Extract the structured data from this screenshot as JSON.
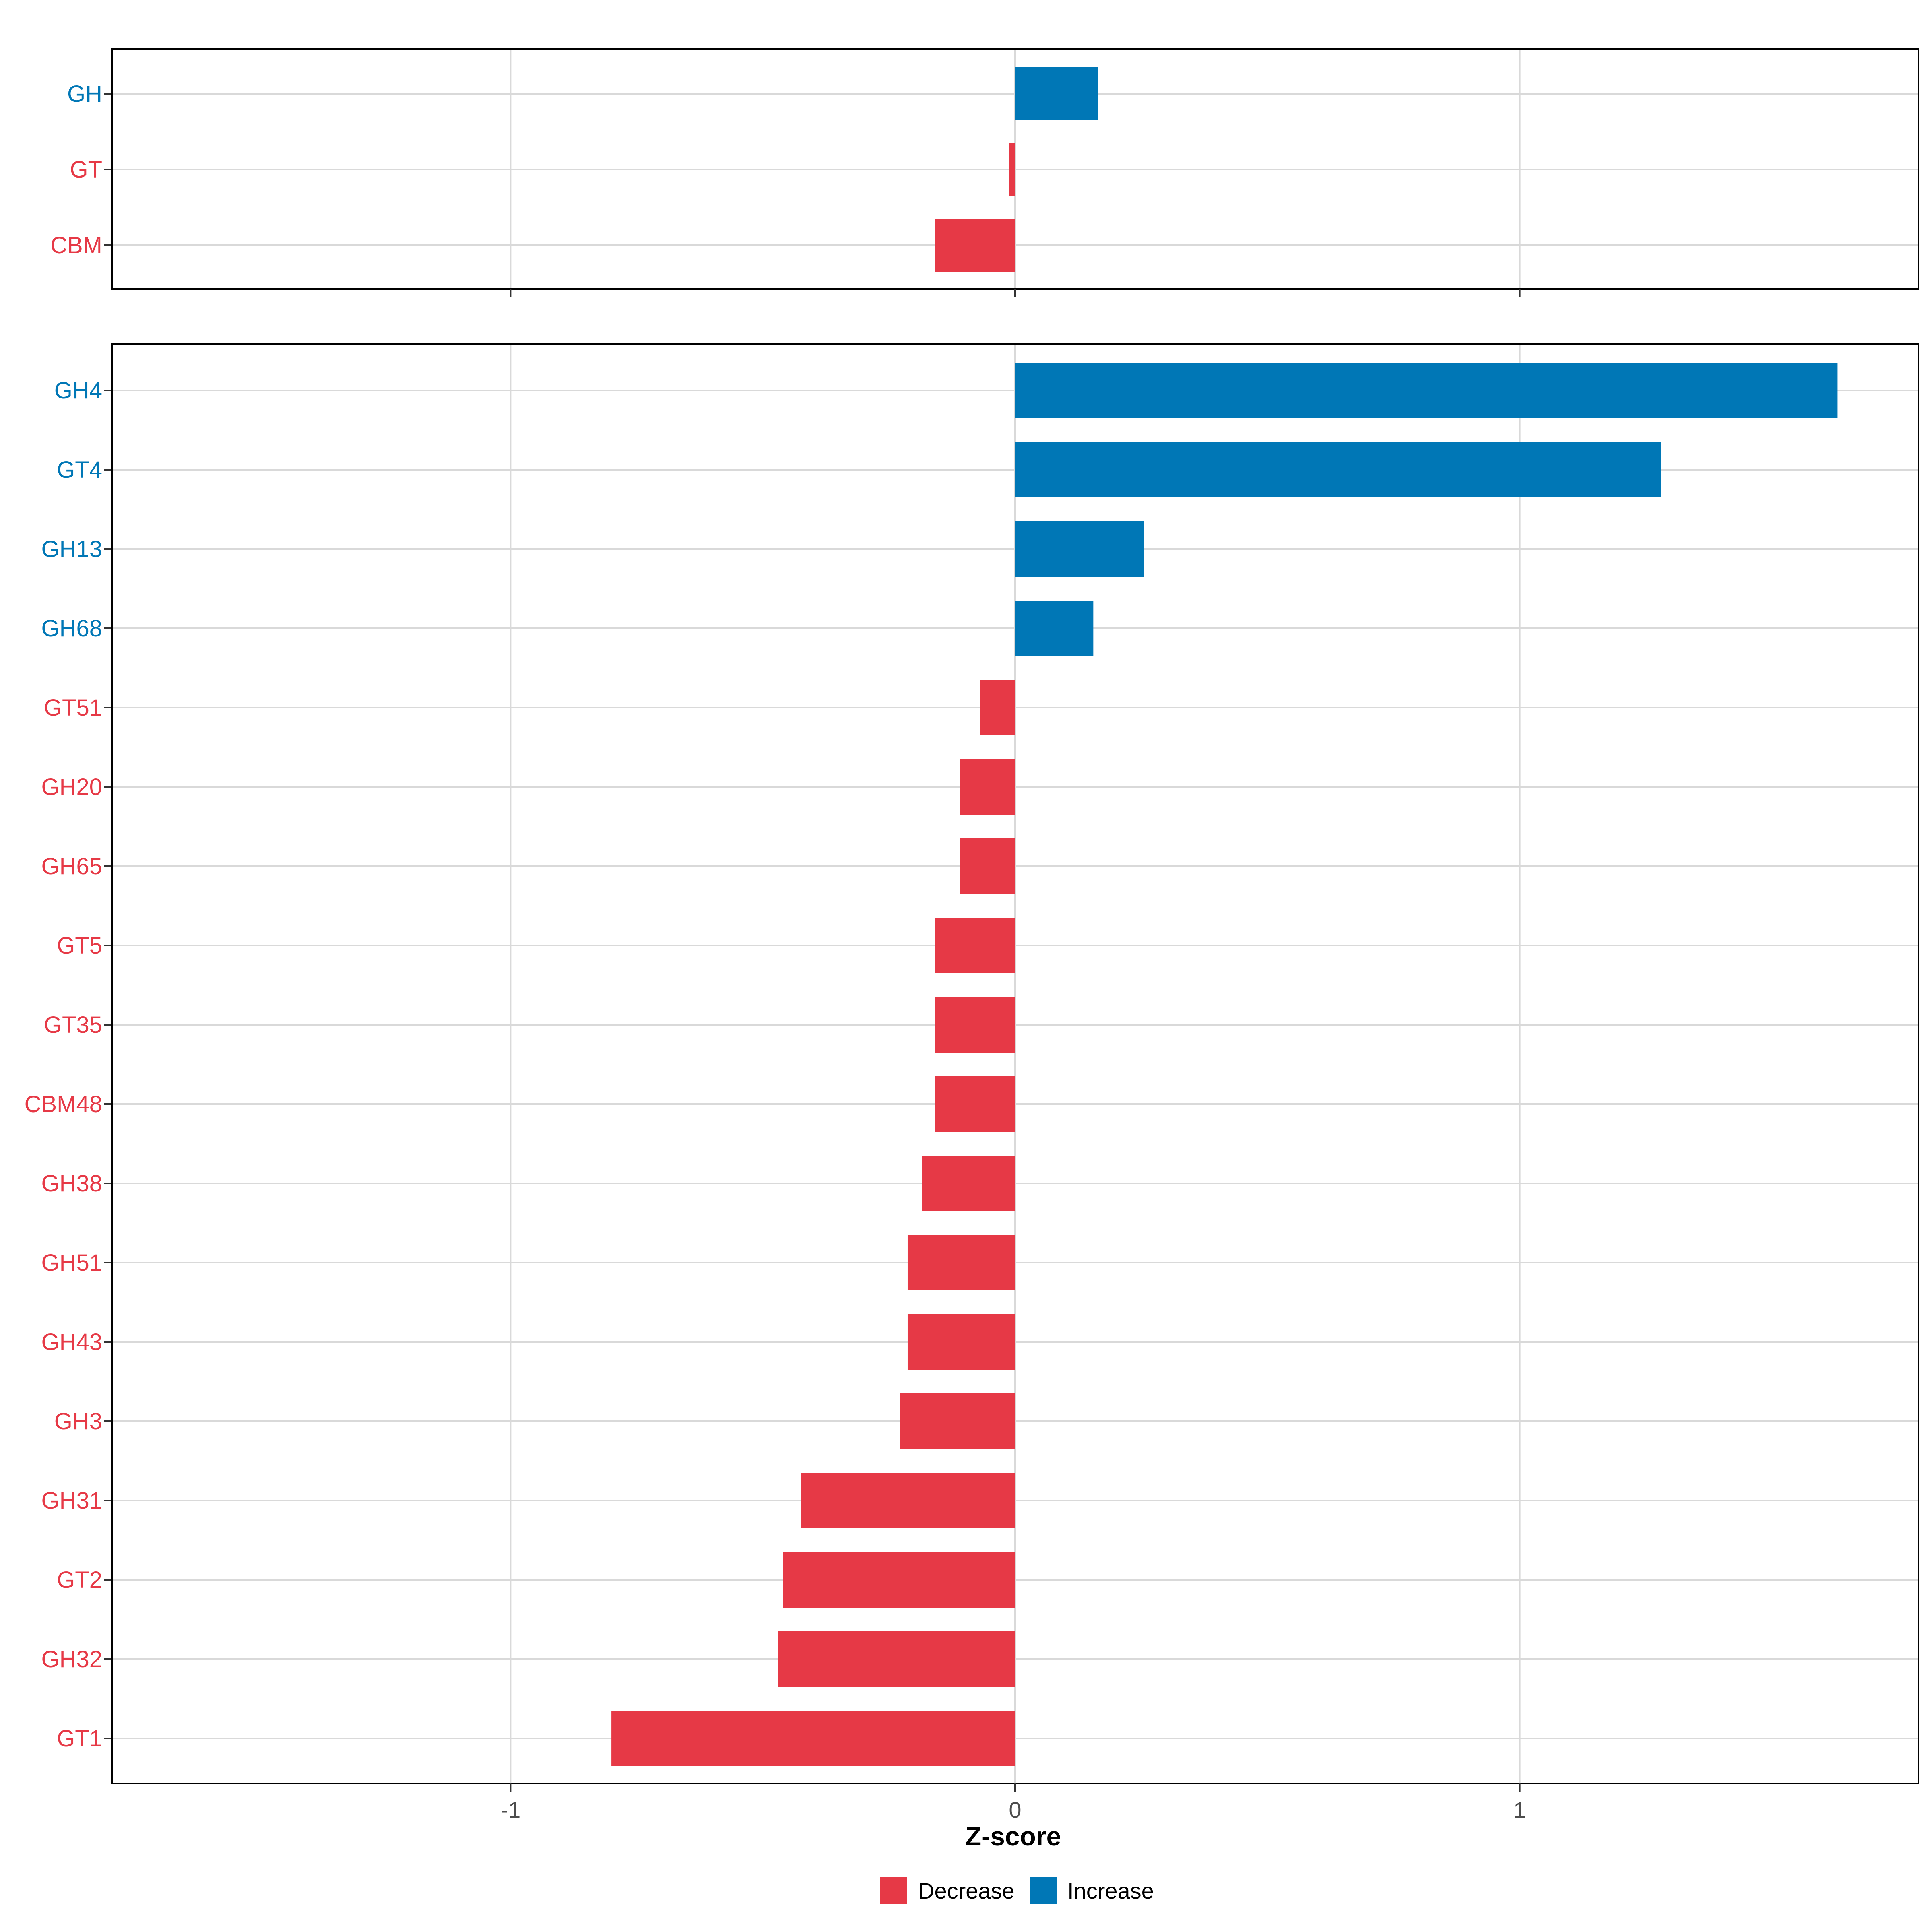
{
  "chart_data": {
    "type": "bar",
    "orientation": "horizontal",
    "xlabel": "Z-score",
    "xlim": [
      -1.79,
      1.79
    ],
    "x_ticks": [
      -1,
      0,
      1
    ],
    "x_tick_labels": [
      "-1",
      "0",
      "1"
    ],
    "grid": true,
    "legend_position": "bottom",
    "legend": [
      {
        "label": "Decrease",
        "color": "#E63946"
      },
      {
        "label": "Increase",
        "color": "#0077B6"
      }
    ],
    "colors": {
      "decrease": "#E63946",
      "increase": "#0077B6"
    },
    "panels": [
      {
        "name": "top",
        "categories": [
          "GH",
          "GT",
          "CBM"
        ],
        "values": [
          0.165,
          -0.012,
          -0.158
        ]
      },
      {
        "name": "bottom",
        "categories": [
          "GH4",
          "GT4",
          "GH13",
          "GH68",
          "GT51",
          "GH20",
          "GH65",
          "GT5",
          "GT35",
          "CBM48",
          "GH38",
          "GH51",
          "GH43",
          "GH3",
          "GH31",
          "GT2",
          "GH32",
          "GT1"
        ],
        "values": [
          1.63,
          1.28,
          0.255,
          0.155,
          -0.07,
          -0.11,
          -0.11,
          -0.158,
          -0.158,
          -0.158,
          -0.185,
          -0.213,
          -0.213,
          -0.228,
          -0.425,
          -0.46,
          -0.47,
          -0.8
        ]
      }
    ]
  }
}
